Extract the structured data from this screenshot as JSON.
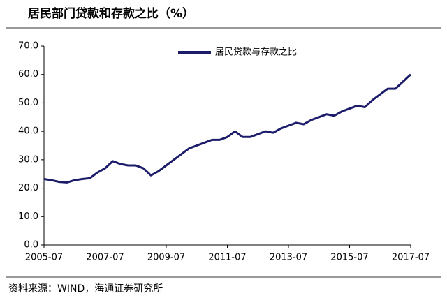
{
  "chart_data": {
    "type": "line",
    "title": "居民部门贷款和存款之比（%）",
    "source": "资料来源：WIND，海通证券研究所",
    "x": [
      "2005-07",
      "2005-10",
      "2006-01",
      "2006-04",
      "2006-07",
      "2006-10",
      "2007-01",
      "2007-04",
      "2007-07",
      "2007-10",
      "2008-01",
      "2008-04",
      "2008-07",
      "2008-10",
      "2009-01",
      "2009-04",
      "2009-07",
      "2009-10",
      "2010-01",
      "2010-04",
      "2010-07",
      "2010-10",
      "2011-01",
      "2011-04",
      "2011-07",
      "2011-10",
      "2012-01",
      "2012-04",
      "2012-07",
      "2012-10",
      "2013-01",
      "2013-04",
      "2013-07",
      "2013-10",
      "2014-01",
      "2014-04",
      "2014-07",
      "2014-10",
      "2015-01",
      "2015-04",
      "2015-07",
      "2015-10",
      "2016-01",
      "2016-04",
      "2016-07",
      "2016-10",
      "2017-01",
      "2017-04",
      "2017-07"
    ],
    "series": [
      {
        "name": "居民贷款与存款之比",
        "color": "#1c1c6b",
        "values": [
          23.2,
          22.8,
          22.2,
          22.0,
          22.8,
          23.2,
          23.5,
          25.5,
          27.0,
          29.5,
          28.5,
          28.0,
          28.0,
          27.0,
          24.5,
          26.0,
          28.0,
          30.0,
          32.0,
          34.0,
          35.0,
          36.0,
          37.0,
          37.0,
          38.0,
          40.0,
          38.0,
          38.0,
          39.0,
          40.0,
          39.5,
          41.0,
          42.0,
          43.0,
          42.5,
          44.0,
          45.0,
          46.0,
          45.5,
          47.0,
          48.0,
          49.0,
          48.5,
          51.0,
          53.0,
          55.0,
          55.0,
          57.5,
          60.0
        ]
      }
    ],
    "xticks": [
      "2005-07",
      "2007-07",
      "2009-07",
      "2011-07",
      "2013-07",
      "2015-07",
      "2017-07"
    ],
    "ylim": [
      0,
      70
    ],
    "yticks": [
      {
        "value": 0,
        "label": "0.0"
      },
      {
        "value": 10,
        "label": "10.0"
      },
      {
        "value": 20,
        "label": "20.0"
      },
      {
        "value": 30,
        "label": "30.0"
      },
      {
        "value": 40,
        "label": "40.0"
      },
      {
        "value": 50,
        "label": "50.0"
      },
      {
        "value": 60,
        "label": "60.0"
      },
      {
        "value": 70,
        "label": "70.0"
      }
    ],
    "legend": "top-center"
  }
}
